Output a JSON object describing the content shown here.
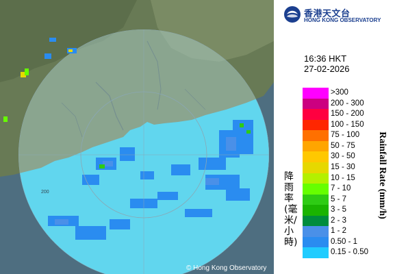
{
  "header": {
    "org_name_zh": "香港天文台",
    "org_name_en": "HONG KONG OBSERVATORY"
  },
  "timestamp": {
    "time": "16:36 HKT",
    "date": "27-02-2026"
  },
  "legend": {
    "title_en": "Rainfall Rate (mm/h)",
    "title_zh": "降雨率(毫米/小時)",
    "items": [
      {
        "label": ">300",
        "color": "#ff00ff"
      },
      {
        "label": "200 - 300",
        "color": "#cc0080"
      },
      {
        "label": "150 - 200",
        "color": "#ff0040"
      },
      {
        "label": "100 - 150",
        "color": "#ff2600"
      },
      {
        "label": "75 - 100",
        "color": "#ff7000"
      },
      {
        "label": "50 - 75",
        "color": "#ffa500"
      },
      {
        "label": "30 - 50",
        "color": "#ffc800"
      },
      {
        "label": "15 - 30",
        "color": "#e6d800"
      },
      {
        "label": "10 - 15",
        "color": "#b4f000"
      },
      {
        "label": "7 - 10",
        "color": "#66ff00"
      },
      {
        "label": "5 - 7",
        "color": "#2ecc14"
      },
      {
        "label": "3 - 5",
        "color": "#1ab400"
      },
      {
        "label": "2 - 3",
        "color": "#008c3c"
      },
      {
        "label": "1 - 2",
        "color": "#4a90e8"
      },
      {
        "label": "0.50 - 1",
        "color": "#2a8cf0"
      },
      {
        "label": "0.15 - 0.50",
        "color": "#20ccff"
      }
    ]
  },
  "map": {
    "copyright": "© Hong Kong Observatory",
    "range_ring_label": "200"
  }
}
